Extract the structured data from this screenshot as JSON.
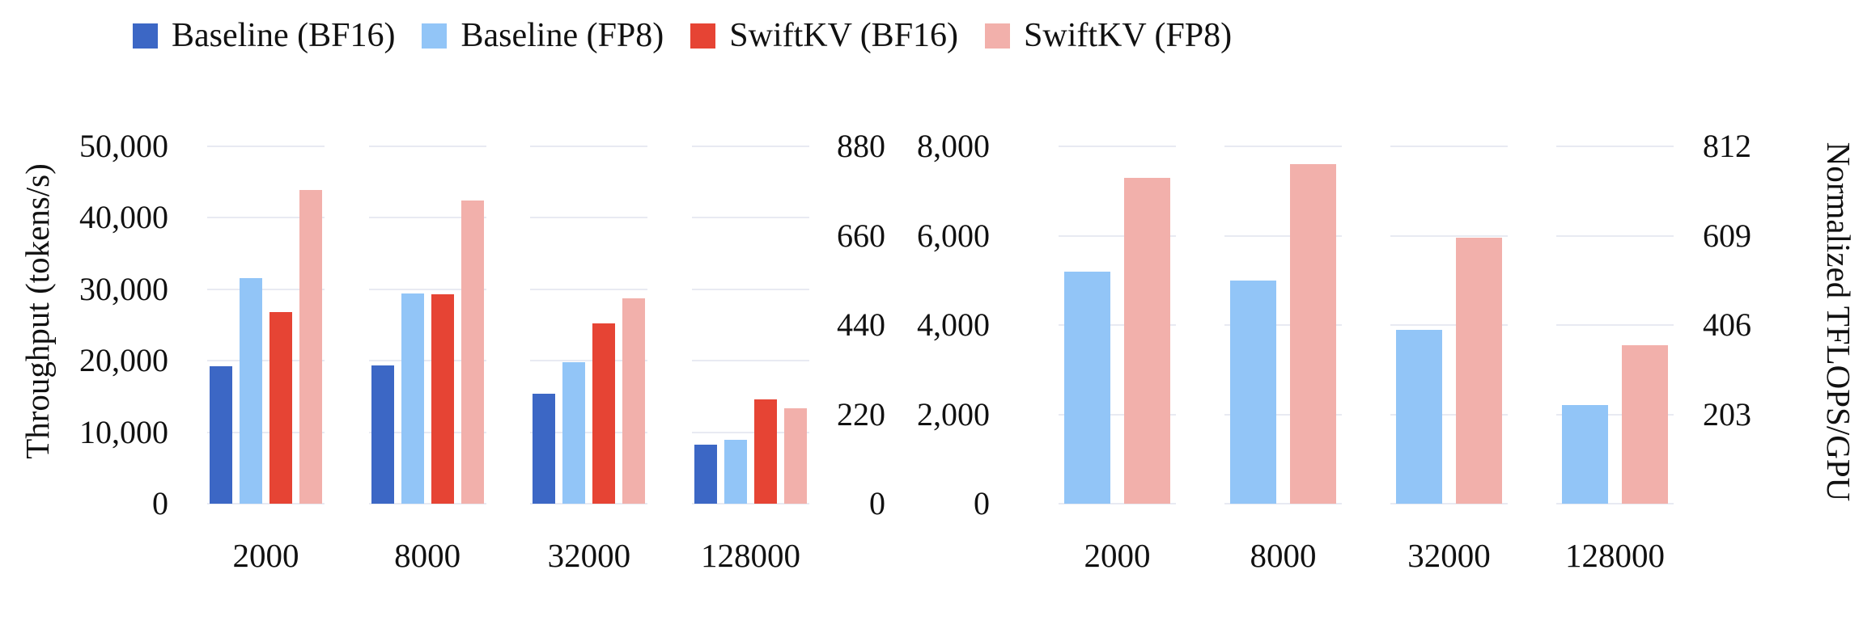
{
  "legend": {
    "items": [
      {
        "label": "Baseline (BF16)",
        "color": "#3C67C5"
      },
      {
        "label": "Baseline (FP8)",
        "color": "#92C5F7"
      },
      {
        "label": "SwiftKV (BF16)",
        "color": "#E64434"
      },
      {
        "label": "SwiftKV (FP8)",
        "color": "#F2B0AB"
      }
    ]
  },
  "colors": {
    "grid": "#E8EAF2",
    "text": "#111111"
  },
  "chart_data": [
    {
      "id": "throughput-chart",
      "type": "bar",
      "title": "",
      "ylabel": "Throughput (tokens/s)",
      "categories": [
        "2000",
        "8000",
        "32000",
        "128000"
      ],
      "series": [
        {
          "name": "Baseline (BF16)",
          "color": "#3C67C5",
          "values": [
            19200,
            19300,
            15400,
            8300
          ]
        },
        {
          "name": "Baseline (FP8)",
          "color": "#92C5F7",
          "values": [
            31600,
            29400,
            19800,
            8900
          ]
        },
        {
          "name": "SwiftKV (BF16)",
          "color": "#E64434",
          "values": [
            26800,
            29300,
            25200,
            14600
          ]
        },
        {
          "name": "SwiftKV (FP8)",
          "color": "#F2B0AB",
          "values": [
            43900,
            42400,
            28700,
            13400
          ]
        }
      ],
      "left_axis": {
        "ticks": [
          "50,000",
          "40,000",
          "30,000",
          "20,000",
          "10,000",
          "0"
        ],
        "max": 50000,
        "ylim": [
          0,
          50000
        ]
      },
      "right_axis": {
        "ticks": [
          "880",
          "660",
          "440",
          "220",
          "0"
        ],
        "slots": 5,
        "label": ""
      },
      "grid": "on",
      "legend_position": "top-left"
    },
    {
      "id": "tflops-chart",
      "type": "bar",
      "title": "",
      "categories": [
        "2000",
        "8000",
        "32000",
        "128000"
      ],
      "series": [
        {
          "name": "Baseline (FP8)",
          "color": "#92C5F7",
          "values": [
            5200,
            5000,
            3900,
            2200
          ]
        },
        {
          "name": "SwiftKV (FP8)",
          "color": "#F2B0AB",
          "values": [
            7300,
            7600,
            5950,
            3550
          ]
        }
      ],
      "left_axis": {
        "ticks": [
          "8,000",
          "6,000",
          "4,000",
          "2,000",
          "0"
        ],
        "max": 8000,
        "ylim": [
          0,
          8000
        ]
      },
      "right_axis": {
        "ticks": [
          "812",
          "609",
          "406",
          "203"
        ],
        "slots": 5,
        "label": "Normalized TFLOPS/GPU"
      },
      "grid": "on"
    }
  ]
}
